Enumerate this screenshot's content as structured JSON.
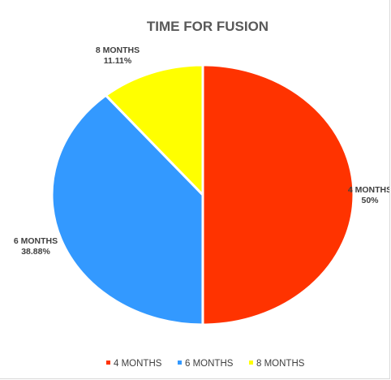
{
  "chart_data": {
    "type": "pie",
    "title": "TIME FOR FUSION",
    "legend_position": "bottom",
    "slices": [
      {
        "label": "4 MONTHS",
        "value": 50,
        "value_label": "50%",
        "color": "#ff3300"
      },
      {
        "label": "6 MONTHS",
        "value": 38.88,
        "value_label": "38.88%",
        "color": "#3399ff"
      },
      {
        "label": "8 MONTHS",
        "value": 11.11,
        "value_label": "11.11%",
        "color": "#ffff00"
      }
    ]
  }
}
